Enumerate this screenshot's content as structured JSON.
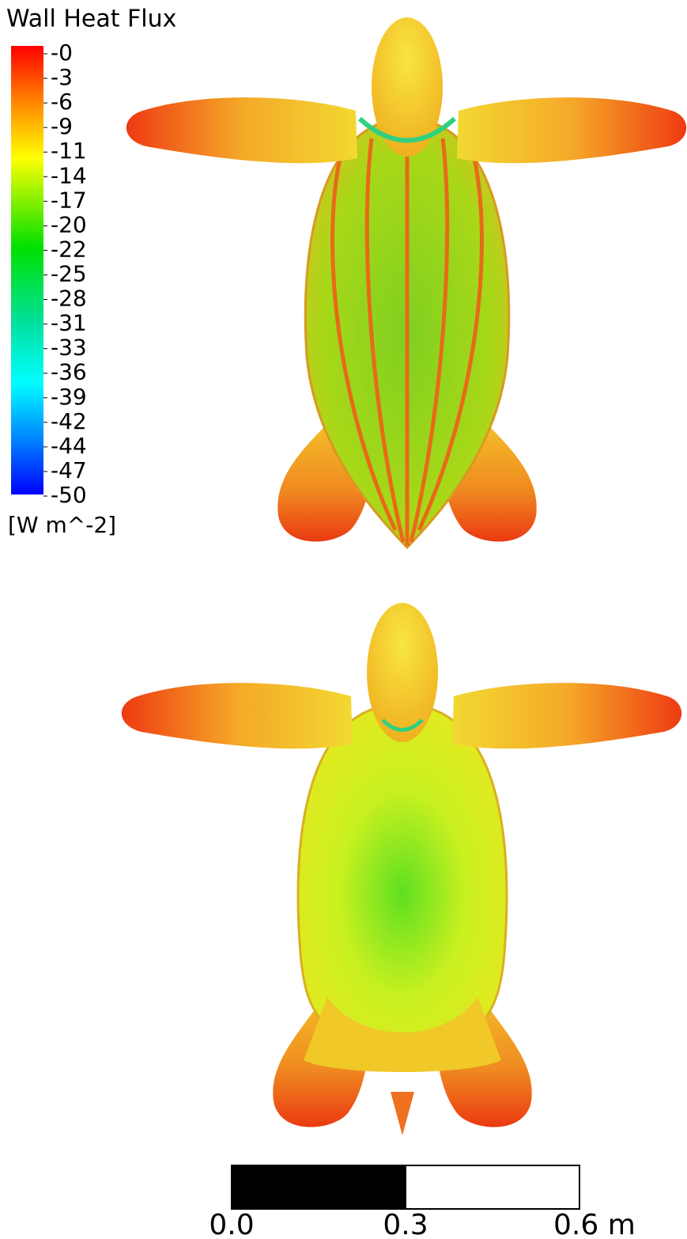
{
  "legend": {
    "title": "Wall Heat Flux",
    "labels": [
      "-0",
      "-3",
      "-6",
      "-9",
      "-11",
      "-14",
      "-17",
      "-20",
      "-22",
      "-25",
      "-28",
      "-31",
      "-33",
      "-36",
      "-39",
      "-42",
      "-44",
      "-47",
      "-50"
    ],
    "unit": "[W m^-2]"
  },
  "scale_bar": {
    "labels": [
      "0.0",
      "0.3",
      "0.6 m"
    ]
  }
}
